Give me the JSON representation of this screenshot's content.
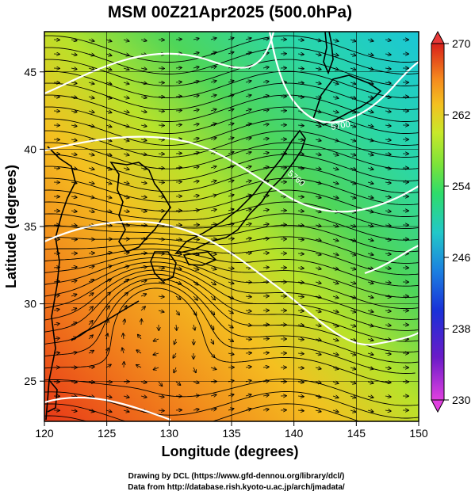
{
  "title": "MSM 00Z21Apr2025 (500.0hPa)",
  "axes": {
    "xlabel": "Longitude (degrees)",
    "ylabel": "Latitude  (degrees)",
    "x_ticks": [
      "120",
      "125",
      "130",
      "135",
      "140",
      "145",
      "150"
    ],
    "y_ticks": [
      "25",
      "30",
      "35",
      "40",
      "45"
    ],
    "xlim": [
      120,
      150
    ],
    "ylim": [
      22.4,
      47.6
    ]
  },
  "colorbar": {
    "ticks": [
      "270",
      "262",
      "254",
      "246",
      "238",
      "230"
    ],
    "range": [
      230,
      270
    ],
    "colors": [
      "#e040e0",
      "#6a1bc8",
      "#1a30d8",
      "#1b7fe0",
      "#22c8c8",
      "#2edc6a",
      "#7be33a",
      "#c8e82a",
      "#f4c020",
      "#f58a1e",
      "#ee4a18",
      "#d8201a"
    ]
  },
  "contour_labels": [
    "5700",
    "5760"
  ],
  "credits": {
    "line1": "Drawing by DCL (https://www.gfd-dennou.org/library/dcl/)",
    "line2": "Data from http://database.rish.kyoto-u.ac.jp/arch/jmadata/"
  },
  "colors": {
    "frame": "#000000",
    "contour": "#ffffff",
    "coast": "#000000"
  }
}
